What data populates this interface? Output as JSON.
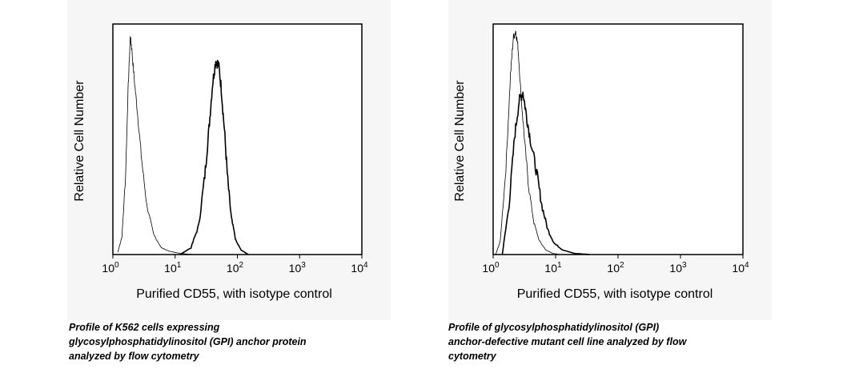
{
  "chart_data": [
    {
      "type": "line",
      "title": "",
      "xlabel": "Purified CD55, with isotype control",
      "ylabel": "Relative Cell Number",
      "xscale": "log",
      "xlim": [
        1,
        10000
      ],
      "ylim": [
        0,
        1
      ],
      "x_ticks": [
        {
          "base": "10",
          "exp": "0"
        },
        {
          "base": "10",
          "exp": "1"
        },
        {
          "base": "10",
          "exp": "2"
        },
        {
          "base": "10",
          "exp": "3"
        },
        {
          "base": "10",
          "exp": "4"
        }
      ],
      "series": [
        {
          "style": "thin",
          "points": [
            [
              1.2,
              0.01
            ],
            [
              1.4,
              0.08
            ],
            [
              1.6,
              0.35
            ],
            [
              1.75,
              0.72
            ],
            [
              1.9,
              0.96
            ],
            [
              2.0,
              0.92
            ],
            [
              2.2,
              0.78
            ],
            [
              2.5,
              0.62
            ],
            [
              2.9,
              0.42
            ],
            [
              3.5,
              0.22
            ],
            [
              4.5,
              0.09
            ],
            [
              6,
              0.03
            ],
            [
              8,
              0.015
            ],
            [
              12,
              0.005
            ],
            [
              20,
              0.0
            ]
          ]
        },
        {
          "style": "thick",
          "points": [
            [
              12,
              0.0
            ],
            [
              18,
              0.03
            ],
            [
              24,
              0.13
            ],
            [
              30,
              0.35
            ],
            [
              35,
              0.56
            ],
            [
              40,
              0.76
            ],
            [
              45,
              0.86
            ],
            [
              50,
              0.84
            ],
            [
              55,
              0.74
            ],
            [
              62,
              0.55
            ],
            [
              70,
              0.33
            ],
            [
              80,
              0.16
            ],
            [
              95,
              0.06
            ],
            [
              115,
              0.02
            ],
            [
              150,
              0.0
            ]
          ]
        }
      ]
    },
    {
      "type": "line",
      "title": "",
      "xlabel": "Purified CD55, with isotype control",
      "ylabel": "Relative Cell Number",
      "xscale": "log",
      "xlim": [
        1,
        10000
      ],
      "ylim": [
        0,
        1
      ],
      "x_ticks": [
        {
          "base": "10",
          "exp": "0"
        },
        {
          "base": "10",
          "exp": "1"
        },
        {
          "base": "10",
          "exp": "2"
        },
        {
          "base": "10",
          "exp": "3"
        },
        {
          "base": "10",
          "exp": "4"
        }
      ],
      "series": [
        {
          "style": "thin",
          "points": [
            [
              1.1,
              0.0
            ],
            [
              1.3,
              0.06
            ],
            [
              1.6,
              0.38
            ],
            [
              1.9,
              0.8
            ],
            [
              2.1,
              0.96
            ],
            [
              2.3,
              0.99
            ],
            [
              2.5,
              0.92
            ],
            [
              2.8,
              0.7
            ],
            [
              3.2,
              0.5
            ],
            [
              3.7,
              0.3
            ],
            [
              4.5,
              0.14
            ],
            [
              5.5,
              0.06
            ],
            [
              7,
              0.02
            ],
            [
              9,
              0.005
            ],
            [
              12,
              0.0
            ]
          ]
        },
        {
          "style": "thick",
          "points": [
            [
              1.4,
              0.0
            ],
            [
              1.8,
              0.22
            ],
            [
              2.2,
              0.52
            ],
            [
              2.6,
              0.68
            ],
            [
              3.0,
              0.72
            ],
            [
              3.4,
              0.62
            ],
            [
              4.0,
              0.5
            ],
            [
              5.0,
              0.36
            ],
            [
              6.0,
              0.22
            ],
            [
              7.5,
              0.11
            ],
            [
              9.5,
              0.05
            ],
            [
              13,
              0.02
            ],
            [
              20,
              0.005
            ],
            [
              35,
              0.0
            ]
          ]
        }
      ]
    }
  ],
  "captions": {
    "left": [
      "Profile of K562 cells expressing",
      "glycosylphosphatidylinositol (GPI) anchor protein",
      "analyzed by flow cytometry"
    ],
    "right": [
      "Profile of glycosylphosphatidylinositol (GPI)",
      "anchor-defective mutant cell line analyzed by flow",
      "cytometry"
    ]
  }
}
